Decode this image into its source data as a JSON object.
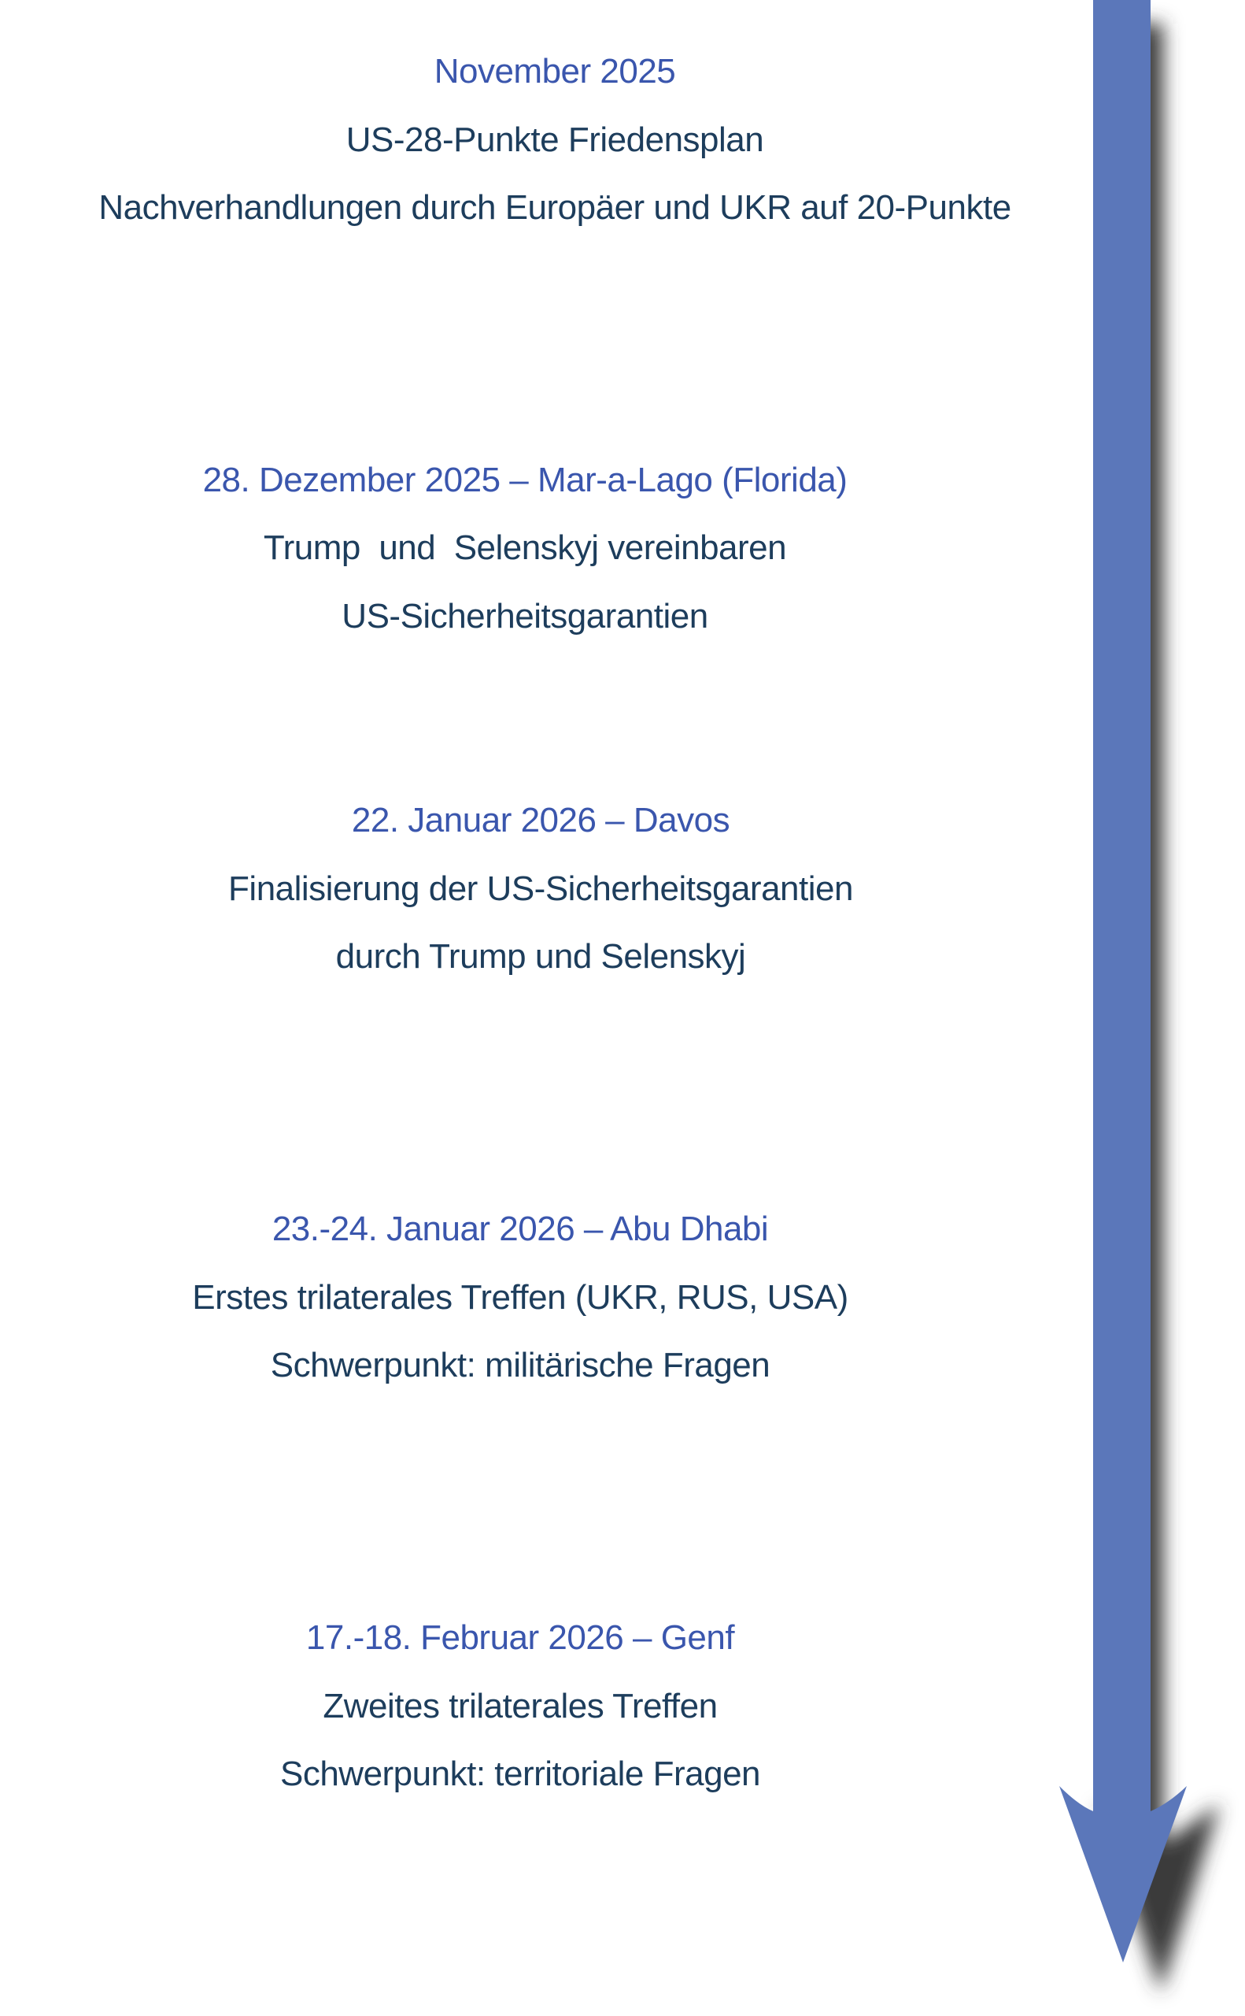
{
  "colors": {
    "date": "#3a56ad",
    "text": "#1d3d5c",
    "arrow": "#5b77ba"
  },
  "events": [
    {
      "date": "November 2025",
      "lines": [
        "US-28-Punkte Friedensplan",
        "Nachverhandlungen durch Europäer und UKR auf 20-Punkte"
      ]
    },
    {
      "date": "28. Dezember 2025 – Mar-a-Lago (Florida)",
      "lines": [
        "Trump  und  Selenskyj vereinbaren",
        "US-Sicherheitsgarantien"
      ]
    },
    {
      "date": "22. Januar 2026 – Davos",
      "lines": [
        "Finalisierung der US-Sicherheitsgarantien",
        "durch Trump und Selenskyj"
      ]
    },
    {
      "date": "23.-24. Januar 2026 – Abu Dhabi",
      "lines": [
        "Erstes trilaterales Treffen (UKR, RUS, USA)",
        "Schwerpunkt: militärische Fragen"
      ]
    },
    {
      "date": "17.-18. Februar 2026 – Genf",
      "lines": [
        "Zweites trilaterales Treffen",
        "Schwerpunkt: territoriale Fragen"
      ]
    }
  ]
}
